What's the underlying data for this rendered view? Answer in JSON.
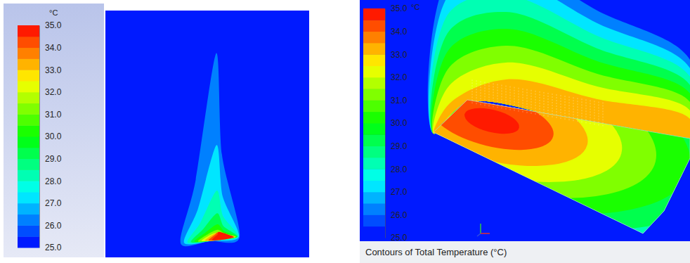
{
  "chart_data": [
    {
      "type": "contour",
      "colorbar_unit": "°C",
      "colorbar_lim": [
        25,
        35
      ],
      "colorbar_ticks": [
        {
          "value": 25,
          "label": "25.0"
        },
        {
          "value": 26,
          "label": "26.0"
        },
        {
          "value": 27,
          "label": "27.0"
        },
        {
          "value": 28,
          "label": "28.0"
        },
        {
          "value": 29,
          "label": "29.0"
        },
        {
          "value": 30,
          "label": "30.0"
        },
        {
          "value": 31,
          "label": "31.0"
        },
        {
          "value": 32,
          "label": "32.0"
        },
        {
          "value": 33,
          "label": "33.0"
        },
        {
          "value": 34,
          "label": "34.0"
        },
        {
          "value": 35,
          "label": "35.0"
        }
      ],
      "levels": [
        26,
        27,
        28,
        29,
        30,
        31,
        32,
        33,
        34,
        35
      ]
    },
    {
      "type": "contour",
      "title": "Contours of Total Temperature (°C)",
      "colorbar_unit": "°C",
      "colorbar_lim": [
        25,
        35
      ],
      "colorbar_ticks": [
        {
          "value": 25,
          "label": "25.0"
        },
        {
          "value": 26,
          "label": "26.0"
        },
        {
          "value": 27,
          "label": "27.0"
        },
        {
          "value": 28,
          "label": "28.0"
        },
        {
          "value": 29,
          "label": "29.0"
        },
        {
          "value": 30,
          "label": "30.0"
        },
        {
          "value": 31,
          "label": "31.0"
        },
        {
          "value": 32,
          "label": "32.0"
        },
        {
          "value": 33,
          "label": "33.0"
        },
        {
          "value": 34,
          "label": "34.0"
        },
        {
          "value": 35,
          "label": "35.0"
        }
      ],
      "levels": [
        26,
        27,
        28,
        29,
        30,
        31,
        32,
        33,
        34,
        35
      ]
    }
  ]
}
